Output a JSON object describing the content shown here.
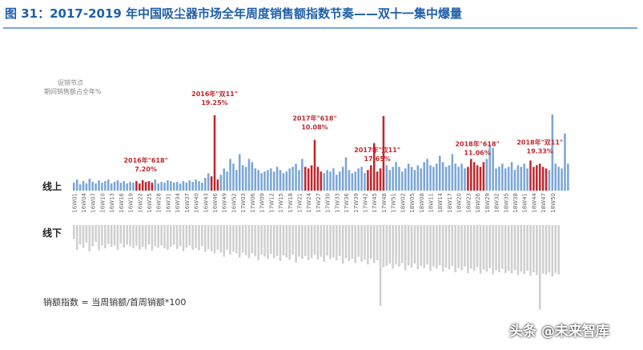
{
  "figure_title": "图 31：2017-2019 年中国吸尘器市场全年周度销售额指数节奏——双十一集中爆量",
  "footnote": "销额指数 = 当周销额/首周销额*100",
  "watermark": "头条 @未来智库",
  "colors": {
    "title": "#1f5fa8",
    "online_bar": "#7aa6d6",
    "promo_bar": "#c0272d",
    "offline_bar": "#cfcfcf",
    "annotation": "#c0272d"
  },
  "chart_data": {
    "type": "bar",
    "legend_note_line1": "促销节点",
    "legend_note_line2": "期间销售额占全年%",
    "row_labels": {
      "online": "线上",
      "offline": "线下"
    },
    "tick_labels": [
      "16W01",
      "16W04",
      "16W07",
      "16W10",
      "16W13",
      "16W16",
      "16W19",
      "16W22",
      "16W25",
      "16W28",
      "16W31",
      "16W34",
      "16W37",
      "16W40",
      "16W43",
      "16W46",
      "16W49",
      "16W52",
      "17W03",
      "17W06",
      "17W09",
      "17W12",
      "17W15",
      "17W18",
      "17W21",
      "17W24",
      "17W27",
      "17W30",
      "17W33",
      "17W36",
      "17W39",
      "17W42",
      "17W45",
      "17W48",
      "17W51",
      "18W02",
      "18W05",
      "18W08",
      "18W11",
      "18W14",
      "18W17",
      "18W20",
      "18W23",
      "18W26",
      "18W29",
      "18W32",
      "18W35",
      "18W38",
      "18W41",
      "18W44",
      "18W47",
      "18W50"
    ],
    "annotations": [
      {
        "line1": "2016年\"618\"",
        "line2": "7.20%",
        "week_index": 23
      },
      {
        "line1": "2016年\"双11\"",
        "line2": "19.25%",
        "week_index": 45
      },
      {
        "line1": "2017年\"618\"",
        "line2": "10.08%",
        "week_index": 77
      },
      {
        "line1": "2017年\"双11\"",
        "line2": "17.65%",
        "week_index": 97
      },
      {
        "line1": "2018年\"618\"",
        "line2": "11.06%",
        "week_index": 129
      },
      {
        "line1": "2018年\"双11\"",
        "line2": "19.33%",
        "week_index": 149
      }
    ],
    "online_index": [
      10,
      14,
      8,
      12,
      9,
      15,
      11,
      9,
      13,
      10,
      12,
      14,
      9,
      11,
      13,
      10,
      12,
      9,
      11,
      10,
      12,
      9,
      13,
      11,
      12,
      10,
      14,
      9,
      11,
      10,
      13,
      12,
      10,
      11,
      9,
      12,
      10,
      13,
      11,
      14,
      12,
      10,
      16,
      22,
      18,
      95,
      14,
      20,
      28,
      24,
      40,
      34,
      26,
      46,
      32,
      30,
      40,
      36,
      28,
      26,
      22,
      24,
      26,
      28,
      24,
      30,
      26,
      22,
      24,
      28,
      30,
      34,
      26,
      40,
      30,
      28,
      32,
      64,
      30,
      24,
      22,
      26,
      24,
      28,
      20,
      24,
      30,
      42,
      26,
      22,
      24,
      28,
      30,
      22,
      26,
      32,
      60,
      24,
      28,
      94,
      32,
      26,
      30,
      36,
      30,
      24,
      28,
      34,
      30,
      26,
      32,
      28,
      36,
      40,
      32,
      30,
      34,
      44,
      36,
      30,
      32,
      46,
      34,
      30,
      34,
      28,
      30,
      40,
      36,
      32,
      30,
      36,
      40,
      58,
      54,
      28,
      30,
      34,
      28,
      30,
      36,
      26,
      32,
      30,
      34,
      28,
      38,
      30,
      32,
      34,
      30,
      28,
      26,
      96,
      34,
      30,
      28,
      72,
      34
    ],
    "promo_weeks": [
      20,
      21,
      22,
      23,
      24,
      25,
      44,
      45,
      46,
      74,
      75,
      76,
      77,
      78,
      79,
      94,
      95,
      96,
      97,
      98,
      99,
      126,
      127,
      128,
      129,
      130,
      131,
      146,
      147,
      148,
      149,
      150,
      151
    ],
    "offline_index": [
      40,
      70,
      55,
      65,
      50,
      75,
      60,
      48,
      72,
      58,
      66,
      54,
      62,
      58,
      70,
      52,
      64,
      56,
      60,
      66,
      58,
      70,
      62,
      68,
      55,
      72,
      60,
      64,
      58,
      66,
      70,
      62,
      56,
      68,
      60,
      74,
      64,
      58,
      70,
      66,
      72,
      60,
      76,
      68,
      74,
      80,
      70,
      78,
      90,
      70,
      84,
      76,
      80,
      92,
      78,
      86,
      94,
      80,
      88,
      100,
      84,
      90,
      96,
      82,
      94,
      88,
      102,
      86,
      92,
      98,
      84,
      106,
      90,
      96,
      88,
      100,
      94,
      84,
      98,
      90,
      104,
      86,
      96,
      92,
      100,
      88,
      110,
      94,
      102,
      96,
      108,
      90,
      104,
      98,
      112,
      96,
      108,
      100,
      230,
      120,
      116,
      110,
      124,
      112,
      118,
      108,
      128,
      114,
      120,
      110,
      126,
      116,
      122,
      112,
      130,
      118,
      124,
      114,
      132,
      120,
      126,
      116,
      134,
      122,
      128,
      118,
      136,
      124,
      130,
      120,
      138,
      126,
      132,
      122,
      140,
      128,
      134,
      124,
      136,
      130,
      138,
      128,
      142,
      132,
      140,
      130,
      144,
      134,
      142,
      240,
      138,
      140,
      134,
      146,
      136,
      140
    ]
  }
}
